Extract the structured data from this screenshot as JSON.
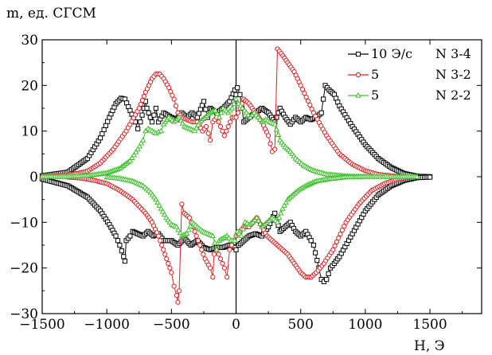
{
  "chart_data": {
    "type": "scatter",
    "title": "",
    "xlabel": "H, Э",
    "ylabel": "m, ед. СГСМ",
    "xlim": [
      -1500,
      1900
    ],
    "ylim": [
      -30,
      30
    ],
    "xticks": [
      "−1500",
      "−1000",
      "−500",
      "0",
      "500",
      "1000",
      "1500"
    ],
    "xtick_values": [
      -1500,
      -1000,
      -500,
      0,
      500,
      1000,
      1500
    ],
    "yticks": [
      "30",
      "20",
      "10",
      "0",
      "−10",
      "−20",
      "−30"
    ],
    "ytick_values": [
      30,
      20,
      10,
      0,
      -10,
      -20,
      -30
    ],
    "grid": false,
    "legend_position": "top-right",
    "series": [
      {
        "label": "10 Э/с",
        "sample": "N 3-4",
        "color": "#000000",
        "marker": "square",
        "upper": [
          [
            -1500,
            0.2
          ],
          [
            -1300,
            1
          ],
          [
            -1150,
            4
          ],
          [
            -1050,
            8.5
          ],
          [
            -980,
            13
          ],
          [
            -930,
            16
          ],
          [
            -890,
            17.2
          ],
          [
            -860,
            17
          ],
          [
            -820,
            14.5
          ],
          [
            -780,
            12
          ],
          [
            -760,
            10.5
          ],
          [
            -740,
            12
          ],
          [
            -700,
            16.5
          ],
          [
            -690,
            15
          ],
          [
            -650,
            12
          ],
          [
            -620,
            15
          ],
          [
            -600,
            12
          ],
          [
            -560,
            14
          ],
          [
            -500,
            13
          ],
          [
            -460,
            12.5
          ],
          [
            -420,
            14
          ],
          [
            -380,
            13
          ],
          [
            -340,
            14
          ],
          [
            -300,
            13
          ],
          [
            -250,
            16.5
          ],
          [
            -220,
            13
          ],
          [
            -200,
            15
          ],
          [
            -150,
            14
          ],
          [
            -100,
            15
          ],
          [
            -50,
            16.5
          ],
          [
            -10,
            19
          ],
          [
            0,
            18
          ],
          [
            10,
            19.5
          ],
          [
            30,
            18
          ],
          [
            60,
            12
          ],
          [
            100,
            13
          ],
          [
            150,
            14
          ],
          [
            200,
            15
          ],
          [
            250,
            14
          ],
          [
            300,
            12
          ],
          [
            340,
            15
          ],
          [
            380,
            13
          ],
          [
            420,
            11.5
          ],
          [
            460,
            13
          ],
          [
            500,
            12
          ],
          [
            540,
            13
          ],
          [
            580,
            12.5
          ],
          [
            620,
            13
          ],
          [
            660,
            14
          ],
          [
            690,
            20
          ],
          [
            720,
            19
          ],
          [
            760,
            18
          ],
          [
            800,
            15.5
          ],
          [
            900,
            11
          ],
          [
            1000,
            7
          ],
          [
            1100,
            4
          ],
          [
            1200,
            2
          ],
          [
            1300,
            0.7
          ],
          [
            1400,
            0.1
          ],
          [
            1500,
            0
          ]
        ],
        "lower": [
          [
            -1500,
            -0.5
          ],
          [
            -1300,
            -2
          ],
          [
            -1150,
            -4.5
          ],
          [
            -1050,
            -7.5
          ],
          [
            -980,
            -10.5
          ],
          [
            -930,
            -13
          ],
          [
            -900,
            -15
          ],
          [
            -870,
            -17.5
          ],
          [
            -860,
            -18.5
          ],
          [
            -850,
            -14
          ],
          [
            -820,
            -13
          ],
          [
            -800,
            -12
          ],
          [
            -760,
            -12.5
          ],
          [
            -720,
            -13
          ],
          [
            -680,
            -12
          ],
          [
            -640,
            -13
          ],
          [
            -600,
            -12.5
          ],
          [
            -560,
            -14
          ],
          [
            -500,
            -14
          ],
          [
            -450,
            -15
          ],
          [
            -400,
            -13.5
          ],
          [
            -350,
            -15
          ],
          [
            -300,
            -14
          ],
          [
            -250,
            -15.5
          ],
          [
            -200,
            -16
          ],
          [
            -150,
            -15.5
          ],
          [
            -100,
            -15.5
          ],
          [
            -50,
            -15
          ],
          [
            -10,
            -15.5
          ],
          [
            0,
            -16
          ],
          [
            20,
            -15
          ],
          [
            60,
            -14
          ],
          [
            100,
            -13
          ],
          [
            150,
            -12.5
          ],
          [
            200,
            -13
          ],
          [
            250,
            -11
          ],
          [
            300,
            -8
          ],
          [
            340,
            -12
          ],
          [
            380,
            -11
          ],
          [
            420,
            -10
          ],
          [
            460,
            -12
          ],
          [
            500,
            -13
          ],
          [
            540,
            -12
          ],
          [
            580,
            -14
          ],
          [
            600,
            -15
          ],
          [
            640,
            -20
          ],
          [
            660,
            -22.5
          ],
          [
            680,
            -23
          ],
          [
            700,
            -22.5
          ],
          [
            730,
            -20
          ],
          [
            760,
            -19
          ],
          [
            800,
            -17.5
          ],
          [
            900,
            -12.5
          ],
          [
            1000,
            -7.5
          ],
          [
            1100,
            -4
          ],
          [
            1200,
            -2
          ],
          [
            1300,
            -0.8
          ],
          [
            1400,
            -0.2
          ],
          [
            1500,
            -0.1
          ]
        ]
      },
      {
        "label": "5",
        "sample": "N 3-2",
        "color": "#e02020",
        "marker": "circle",
        "upper": [
          [
            -1500,
            0
          ],
          [
            -1300,
            0.3
          ],
          [
            -1150,
            1.2
          ],
          [
            -1050,
            3
          ],
          [
            -950,
            6
          ],
          [
            -850,
            10
          ],
          [
            -750,
            15
          ],
          [
            -700,
            18.5
          ],
          [
            -650,
            21.5
          ],
          [
            -620,
            22.5
          ],
          [
            -590,
            22.5
          ],
          [
            -560,
            21.5
          ],
          [
            -520,
            19.5
          ],
          [
            -480,
            17
          ],
          [
            -450,
            14
          ],
          [
            -420,
            13
          ],
          [
            -380,
            12.5
          ],
          [
            -340,
            12
          ],
          [
            -300,
            12
          ],
          [
            -260,
            10
          ],
          [
            -230,
            11
          ],
          [
            -200,
            8
          ],
          [
            -180,
            12
          ],
          [
            -150,
            13
          ],
          [
            -120,
            11
          ],
          [
            -90,
            9
          ],
          [
            -60,
            11
          ],
          [
            -30,
            13
          ],
          [
            0,
            13
          ],
          [
            30,
            15
          ],
          [
            60,
            17
          ],
          [
            100,
            16
          ],
          [
            150,
            14
          ],
          [
            200,
            12
          ],
          [
            250,
            9
          ],
          [
            280,
            5.5
          ],
          [
            300,
            6
          ],
          [
            320,
            28
          ],
          [
            350,
            27
          ],
          [
            400,
            25
          ],
          [
            450,
            23
          ],
          [
            500,
            20
          ],
          [
            600,
            14
          ],
          [
            700,
            9
          ],
          [
            800,
            5
          ],
          [
            900,
            2.7
          ],
          [
            1000,
            1.3
          ],
          [
            1100,
            0.5
          ],
          [
            1200,
            0.2
          ],
          [
            1300,
            0
          ]
        ],
        "lower": [
          [
            -1300,
            -0.1
          ],
          [
            -1200,
            -0.3
          ],
          [
            -1100,
            -0.8
          ],
          [
            -1000,
            -1.5
          ],
          [
            -900,
            -3
          ],
          [
            -800,
            -5
          ],
          [
            -700,
            -8
          ],
          [
            -650,
            -10
          ],
          [
            -600,
            -13
          ],
          [
            -550,
            -17
          ],
          [
            -500,
            -21
          ],
          [
            -480,
            -24
          ],
          [
            -460,
            -26
          ],
          [
            -450,
            -27.5
          ],
          [
            -440,
            -25
          ],
          [
            -420,
            -6
          ],
          [
            -400,
            -8
          ],
          [
            -360,
            -9
          ],
          [
            -320,
            -12
          ],
          [
            -280,
            -15
          ],
          [
            -240,
            -18
          ],
          [
            -200,
            -20
          ],
          [
            -180,
            -22
          ],
          [
            -170,
            -17
          ],
          [
            -150,
            -16
          ],
          [
            -120,
            -18
          ],
          [
            -90,
            -20
          ],
          [
            -70,
            -22
          ],
          [
            -50,
            -16
          ],
          [
            -20,
            -14
          ],
          [
            0,
            -13
          ],
          [
            30,
            -12
          ],
          [
            60,
            -11
          ],
          [
            100,
            -11
          ],
          [
            130,
            -10
          ],
          [
            160,
            -9
          ],
          [
            200,
            -11
          ],
          [
            240,
            -13
          ],
          [
            280,
            -14
          ],
          [
            320,
            -15
          ],
          [
            360,
            -16
          ],
          [
            400,
            -17
          ],
          [
            450,
            -19
          ],
          [
            500,
            -21
          ],
          [
            540,
            -22
          ],
          [
            580,
            -22
          ],
          [
            620,
            -21
          ],
          [
            680,
            -19
          ],
          [
            750,
            -16
          ],
          [
            850,
            -10
          ],
          [
            950,
            -6
          ],
          [
            1050,
            -3
          ],
          [
            1150,
            -1.5
          ],
          [
            1250,
            -0.5
          ],
          [
            1350,
            -0.1
          ]
        ]
      },
      {
        "label": "5",
        "sample": "N 2-2",
        "color": "#3cbf2a",
        "marker": "triangle",
        "upper": [
          [
            -1500,
            0
          ],
          [
            -1300,
            0
          ],
          [
            -1150,
            0.2
          ],
          [
            -1000,
            0.8
          ],
          [
            -900,
            1.8
          ],
          [
            -820,
            3.5
          ],
          [
            -760,
            6
          ],
          [
            -720,
            8
          ],
          [
            -700,
            10
          ],
          [
            -680,
            10.5
          ],
          [
            -650,
            10
          ],
          [
            -620,
            9.5
          ],
          [
            -600,
            9.8
          ],
          [
            -580,
            10
          ],
          [
            -560,
            11.5
          ],
          [
            -520,
            13
          ],
          [
            -480,
            12
          ],
          [
            -440,
            13
          ],
          [
            -400,
            11
          ],
          [
            -360,
            10.5
          ],
          [
            -320,
            10
          ],
          [
            -280,
            12
          ],
          [
            -240,
            13
          ],
          [
            -200,
            14
          ],
          [
            -160,
            14.5
          ],
          [
            -130,
            13
          ],
          [
            -100,
            15
          ],
          [
            -60,
            14
          ],
          [
            -30,
            15
          ],
          [
            0,
            17
          ],
          [
            20,
            16
          ],
          [
            50,
            15
          ],
          [
            80,
            14
          ],
          [
            110,
            13
          ],
          [
            140,
            14
          ],
          [
            170,
            13
          ],
          [
            200,
            12
          ],
          [
            230,
            12.5
          ],
          [
            260,
            12
          ],
          [
            300,
            11.5
          ],
          [
            340,
            8
          ],
          [
            380,
            6.5
          ],
          [
            420,
            5.5
          ],
          [
            460,
            4
          ],
          [
            520,
            2.5
          ],
          [
            600,
            1.3
          ],
          [
            700,
            0.5
          ],
          [
            850,
            0.1
          ],
          [
            1000,
            0
          ]
        ],
        "lower": [
          [
            -1000,
            -0.1
          ],
          [
            -900,
            -0.4
          ],
          [
            -800,
            -1
          ],
          [
            -720,
            -2
          ],
          [
            -660,
            -3.5
          ],
          [
            -620,
            -5
          ],
          [
            -580,
            -7
          ],
          [
            -540,
            -9
          ],
          [
            -500,
            -10.5
          ],
          [
            -460,
            -11
          ],
          [
            -420,
            -13
          ],
          [
            -380,
            -12.5
          ],
          [
            -340,
            -10
          ],
          [
            -300,
            -11
          ],
          [
            -260,
            -12
          ],
          [
            -220,
            -12.5
          ],
          [
            -180,
            -13
          ],
          [
            -150,
            -16
          ],
          [
            -130,
            -14
          ],
          [
            -100,
            -13.5
          ],
          [
            -70,
            -13
          ],
          [
            -40,
            -14
          ],
          [
            -10,
            -14
          ],
          [
            10,
            -12
          ],
          [
            40,
            -13
          ],
          [
            70,
            -10
          ],
          [
            100,
            -10.5
          ],
          [
            130,
            -10
          ],
          [
            160,
            -9
          ],
          [
            200,
            -11
          ],
          [
            240,
            -10
          ],
          [
            280,
            -9
          ],
          [
            320,
            -10
          ],
          [
            360,
            -7
          ],
          [
            400,
            -5
          ],
          [
            440,
            -4
          ],
          [
            480,
            -3
          ],
          [
            540,
            -2
          ],
          [
            620,
            -1
          ],
          [
            720,
            -0.5
          ],
          [
            850,
            -0.1
          ],
          [
            1000,
            0
          ],
          [
            1200,
            0
          ],
          [
            1400,
            0
          ]
        ]
      }
    ]
  }
}
